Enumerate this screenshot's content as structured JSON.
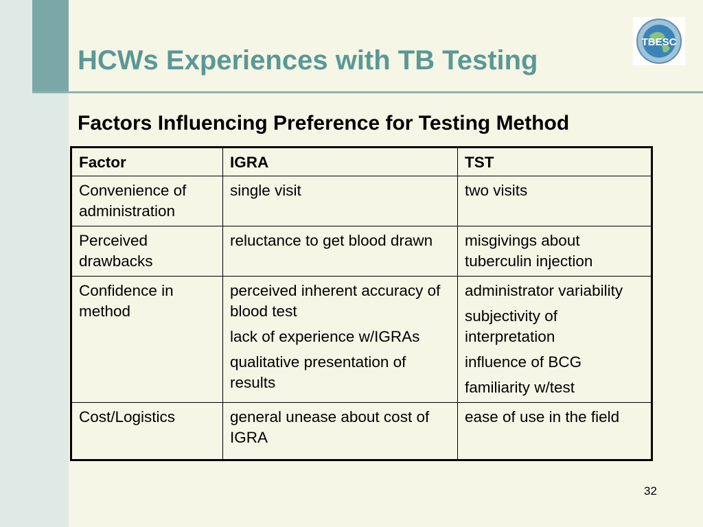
{
  "slide": {
    "title": "HCWs Experiences with TB Testing",
    "subtitle": "Factors Influencing Preference for Testing Method",
    "page_number": "32",
    "logo_text": "TBESC"
  },
  "colors": {
    "title": "#5a9896",
    "accent_bar": "#7aa8a7",
    "background": "#f5f6e6"
  },
  "table": {
    "headers": [
      "Factor",
      "IGRA",
      "TST"
    ],
    "rows": [
      {
        "factor": [
          "Convenience of administration"
        ],
        "igra": [
          "single visit"
        ],
        "tst": [
          "two visits"
        ]
      },
      {
        "factor": [
          "Perceived drawbacks"
        ],
        "igra": [
          "reluctance to get blood drawn"
        ],
        "tst": [
          "misgivings about tuberculin injection"
        ]
      },
      {
        "factor": [
          "Confidence in method"
        ],
        "igra": [
          "perceived inherent accuracy of blood test",
          "lack of experience w/IGRAs",
          "qualitative presentation of results"
        ],
        "tst": [
          "administrator variability",
          "subjectivity of interpretation",
          "influence of BCG",
          "familiarity w/test"
        ]
      },
      {
        "factor": [
          "Cost/Logistics"
        ],
        "igra": [
          "general unease about cost of IGRA"
        ],
        "tst": [
          "ease of use in the field"
        ]
      }
    ]
  }
}
